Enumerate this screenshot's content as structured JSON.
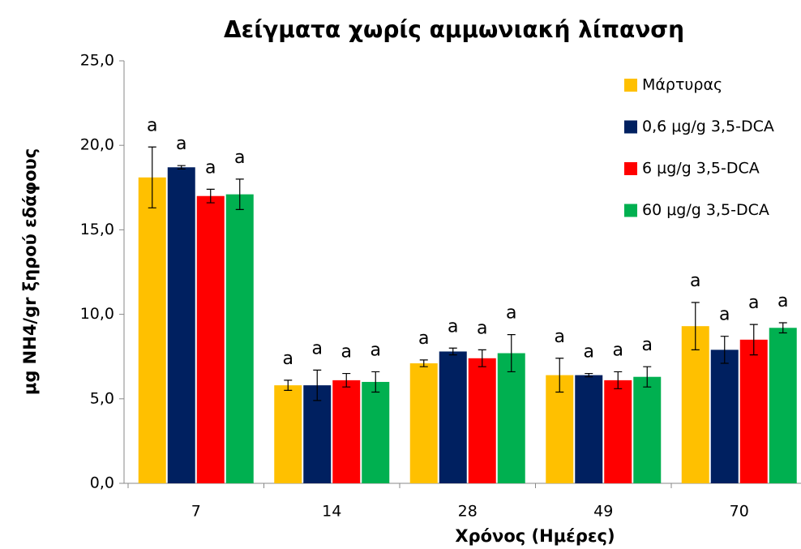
{
  "chart_data": {
    "type": "bar",
    "title": "Δείγματα χωρίς αμμωνιακή λίπανση",
    "x_label": "Χρόνος (Ημέρες)",
    "y_label": "μg NH4/gr ξηρού εδάφους",
    "categories": [
      "7",
      "14",
      "28",
      "49",
      "70"
    ],
    "series": [
      {
        "name": "Μάρτυρας",
        "color": "#FFC000",
        "values": [
          18.1,
          5.8,
          7.1,
          6.4,
          9.3
        ],
        "errors": [
          1.8,
          0.3,
          0.2,
          1.0,
          1.4
        ],
        "significance": [
          "a",
          "a",
          "a",
          "a",
          "a"
        ]
      },
      {
        "name": "0,6 μg/g 3,5-DCA",
        "color": "#002060",
        "values": [
          18.7,
          5.8,
          7.8,
          6.4,
          7.9
        ],
        "errors": [
          0.1,
          0.9,
          0.2,
          0.1,
          0.8
        ],
        "significance": [
          "a",
          "a",
          "a",
          "a",
          "a"
        ]
      },
      {
        "name": "6 μg/g 3,5-DCA",
        "color": "#FF0000",
        "values": [
          17.0,
          6.1,
          7.4,
          6.1,
          8.5
        ],
        "errors": [
          0.4,
          0.4,
          0.5,
          0.5,
          0.9
        ],
        "significance": [
          "a",
          "a",
          "a",
          "a",
          "a"
        ]
      },
      {
        "name": "60 μg/g 3,5-DCA",
        "color": "#00B050",
        "values": [
          17.1,
          6.0,
          7.7,
          6.3,
          9.2
        ],
        "errors": [
          0.9,
          0.6,
          1.1,
          0.6,
          0.3
        ],
        "significance": [
          "a",
          "a",
          "a",
          "a",
          "a"
        ]
      }
    ],
    "ylim": [
      0,
      25
    ],
    "yticks": [
      {
        "value": 0,
        "label": "0,0"
      },
      {
        "value": 5,
        "label": "5,0"
      },
      {
        "value": 10,
        "label": "10,0"
      },
      {
        "value": 15,
        "label": "15,0"
      },
      {
        "value": 20,
        "label": "20,0"
      },
      {
        "value": 25,
        "label": "25,0"
      }
    ],
    "grid": false,
    "legend": "top-right"
  }
}
